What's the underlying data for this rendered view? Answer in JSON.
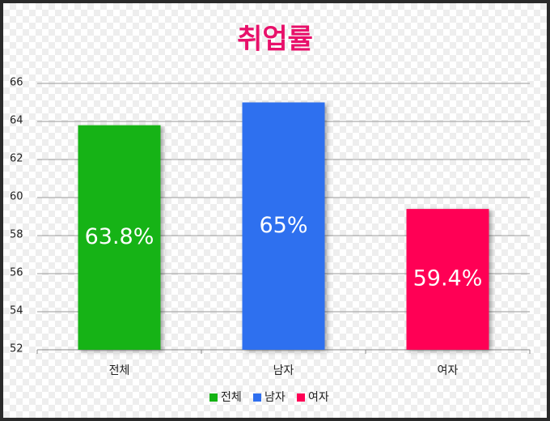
{
  "chart_data": {
    "type": "bar",
    "title": "취업률",
    "categories": [
      "전체",
      "남자",
      "여자"
    ],
    "values": [
      63.8,
      65,
      59.4
    ],
    "value_labels": [
      "63.8%",
      "65%",
      "59.4%"
    ],
    "colors": [
      "#12b312",
      "#2f6fef",
      "#ff0055"
    ],
    "title_color": "#e8106a",
    "ylim": [
      52,
      66
    ],
    "yticks": [
      52,
      54,
      56,
      58,
      60,
      62,
      64,
      66
    ],
    "grid": true,
    "legend": "bottom"
  }
}
